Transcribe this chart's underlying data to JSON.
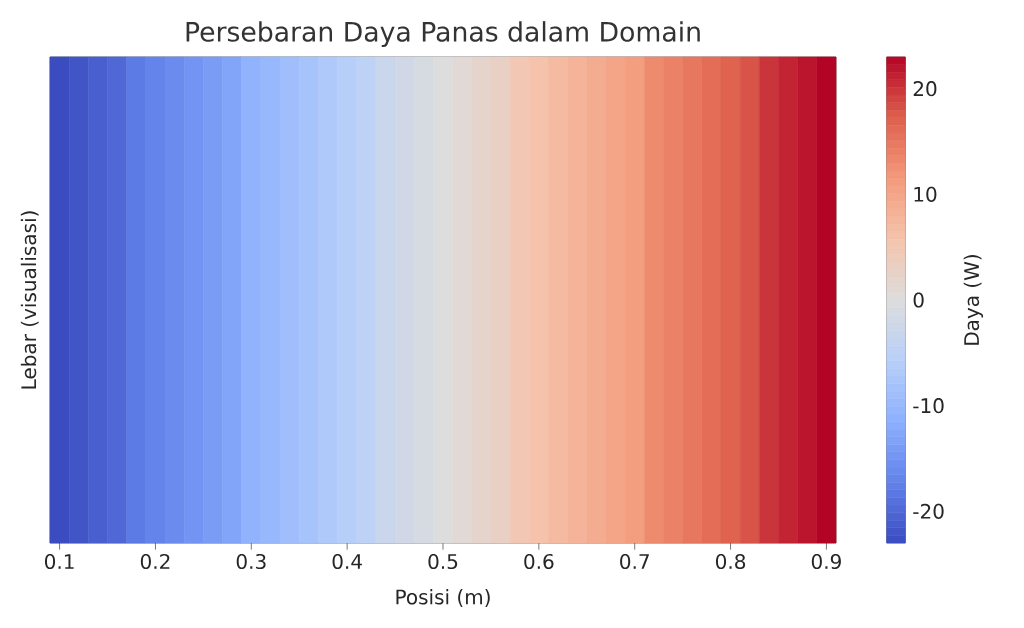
{
  "chart_data": {
    "type": "heatmap",
    "title": "Persebaran Daya Panas dalam Domain",
    "xlabel": "Posisi (m)",
    "ylabel": "Lebar (visualisasi)",
    "clabel": "Daya (W)",
    "categories": [
      "0.1",
      null,
      null,
      null,
      null,
      "0.2",
      null,
      null,
      null,
      null,
      "0.3",
      null,
      null,
      null,
      null,
      "0.4",
      null,
      null,
      null,
      null,
      "0.5",
      null,
      null,
      null,
      null,
      "0.6",
      null,
      null,
      null,
      null,
      "0.7",
      null,
      null,
      null,
      null,
      "0.8",
      null,
      null,
      null,
      null,
      "0.9"
    ],
    "y_categories": [
      null
    ],
    "cells": [
      [
        -23,
        -22,
        -21,
        -20,
        -18,
        -17,
        -16,
        -15,
        -14,
        -13,
        -11,
        -10,
        -9,
        -8,
        -7,
        -6,
        -5,
        -3,
        -2,
        -1,
        0,
        1,
        2,
        3,
        5,
        6,
        7,
        8,
        9,
        10,
        11,
        13,
        14,
        15,
        16,
        17,
        18,
        20,
        21,
        22,
        23
      ]
    ],
    "clim": [
      -23,
      23
    ],
    "cticks": [
      -20,
      -10,
      0,
      10,
      20
    ]
  }
}
